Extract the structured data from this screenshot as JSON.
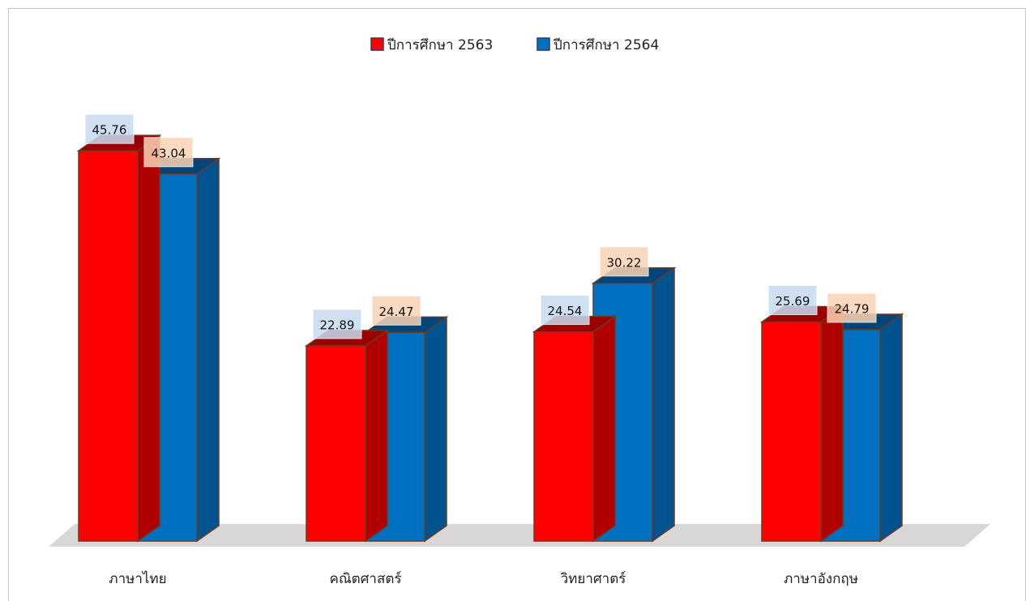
{
  "chart_data": {
    "type": "bar3d",
    "categories": [
      "ภาษาไทย",
      "คณิตศาสตร์",
      "วิทยาศาตร์",
      "ภาษาอังกฤษ"
    ],
    "series": [
      {
        "name": "ปีการศึกษา 2563",
        "color": "#ff0000",
        "values": [
          45.76,
          22.89,
          24.54,
          25.69
        ]
      },
      {
        "name": "ปีการศึกษา 2564",
        "color": "#0070c0",
        "values": [
          43.04,
          24.47,
          30.22,
          24.79
        ]
      }
    ],
    "legend": "top"
  }
}
